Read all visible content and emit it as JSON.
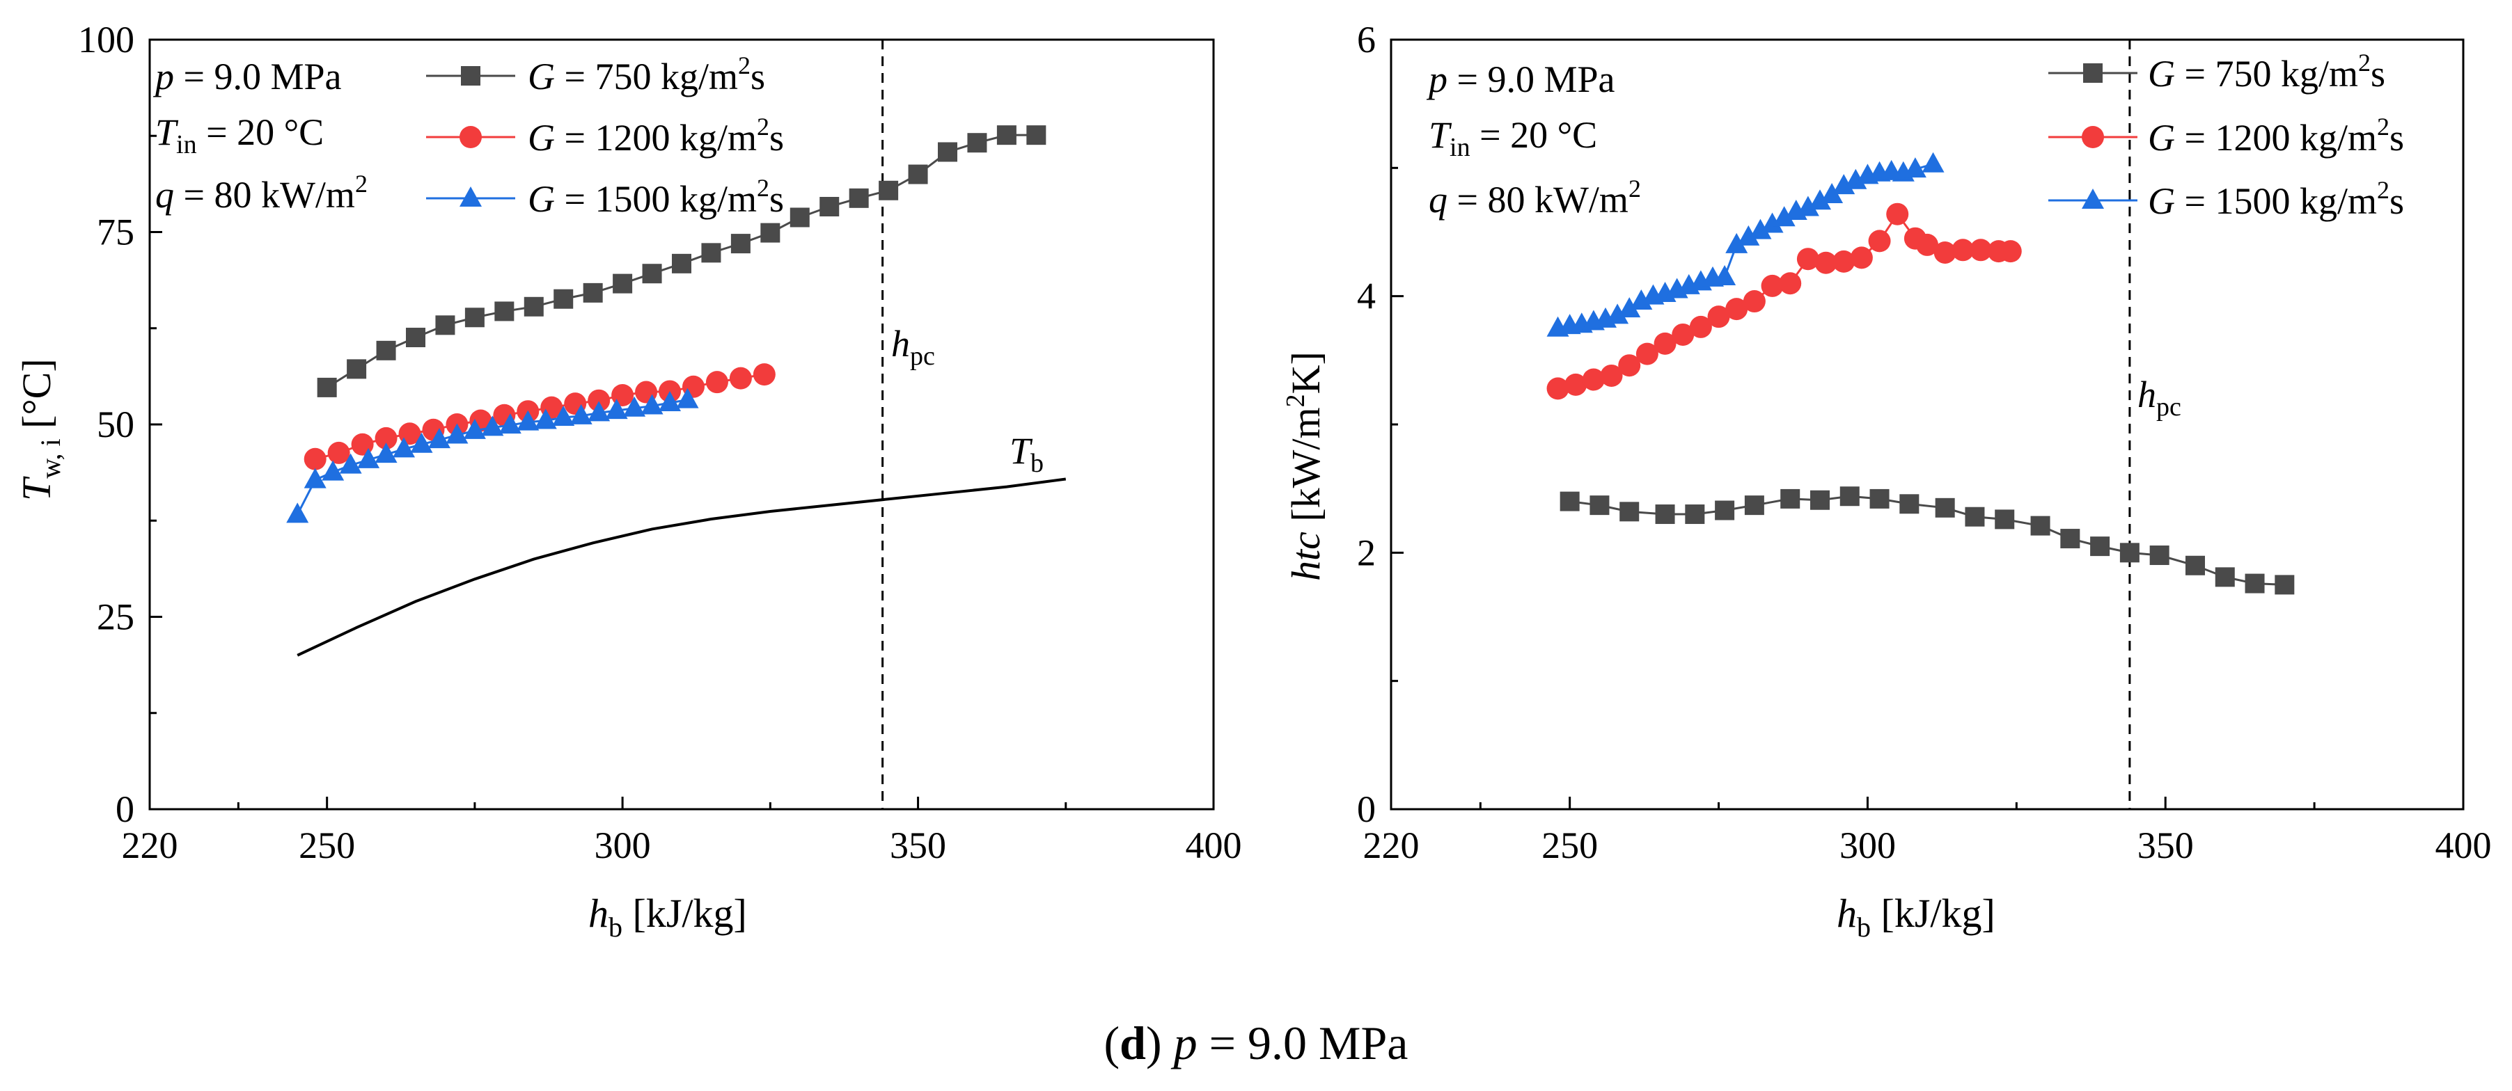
{
  "caption": {
    "letter": "d",
    "p_sym": "p",
    "text": " = 9.0 MPa"
  },
  "conditions": {
    "p": {
      "sym": "p",
      "text": " = 9.0 MPa"
    },
    "tin": {
      "sym": "T",
      "sub": "in",
      "text": " = 20 °C"
    },
    "q": {
      "sym": "q",
      "text": " = 80 kW/m",
      "sup": "2"
    }
  },
  "legend": [
    {
      "sym": "G",
      "text": " = 750 kg/m",
      "sup": "2",
      "tail": "s"
    },
    {
      "sym": "G",
      "text": " = 1200 kg/m",
      "sup": "2",
      "tail": "s"
    },
    {
      "sym": "G",
      "text": " = 1500 kg/m",
      "sup": "2",
      "tail": "s"
    }
  ],
  "annotations": {
    "hpc": {
      "sym": "h",
      "sub": "pc"
    },
    "tb": {
      "sym": "T",
      "sub": "b"
    }
  },
  "colors": {
    "g750": "#4a4a4a",
    "g1200": "#f23c3c",
    "g1500": "#1f6fe0",
    "tb": "#000000"
  },
  "chart_data": [
    {
      "type": "line",
      "title": "",
      "xlabel": {
        "sym": "h",
        "sub": "b",
        "text": " [kJ/kg]"
      },
      "ylabel": {
        "sym": "T",
        "sub": "w, i",
        "text": " [°C]"
      },
      "xlim": [
        220,
        400
      ],
      "ylim": [
        0,
        100
      ],
      "xticks": [
        "220",
        "250",
        "300",
        "350",
        "400"
      ],
      "yticks": [
        "0",
        "25",
        "50",
        "75",
        "100"
      ],
      "hpc_x": 344,
      "series": [
        {
          "name": "G = 750 kg/m2s",
          "marker": "square",
          "x": [
            250,
            255,
            260,
            265,
            270,
            275,
            280,
            285,
            290,
            295,
            300,
            305,
            310,
            315,
            320,
            325,
            330,
            335,
            340,
            345,
            350,
            355,
            360,
            365,
            370
          ],
          "y": [
            54.8,
            57.2,
            59.6,
            61.3,
            62.9,
            63.9,
            64.7,
            65.3,
            66.3,
            67.1,
            68.3,
            69.6,
            70.9,
            72.3,
            73.5,
            74.9,
            76.9,
            78.3,
            79.4,
            80.4,
            82.5,
            85.4,
            86.6,
            87.6,
            87.6
          ]
        },
        {
          "name": "G = 1200 kg/m2s",
          "marker": "circle",
          "x": [
            248,
            252,
            256,
            260,
            264,
            268,
            272,
            276,
            280,
            284,
            288,
            292,
            296,
            300,
            304,
            308,
            312,
            316,
            320,
            324
          ],
          "y": [
            45.5,
            46.3,
            47.4,
            48.2,
            48.8,
            49.3,
            50.0,
            50.5,
            51.2,
            51.7,
            52.2,
            52.7,
            53.1,
            53.8,
            54.2,
            54.3,
            54.9,
            55.5,
            56.0,
            56.5
          ]
        },
        {
          "name": "G = 1500 kg/m2s",
          "marker": "triangle",
          "x": [
            245,
            248,
            251,
            254,
            257,
            260,
            263,
            266,
            269,
            272,
            275,
            278,
            281,
            284,
            287,
            290,
            293,
            296,
            299,
            302,
            305,
            308,
            311
          ],
          "y": [
            38.3,
            42.8,
            43.8,
            44.7,
            45.4,
            46.1,
            46.8,
            47.4,
            48.0,
            48.6,
            49.2,
            49.6,
            49.9,
            50.3,
            50.5,
            50.9,
            51.1,
            51.5,
            51.8,
            52.1,
            52.4,
            52.8,
            53.2
          ]
        }
      ],
      "tb_curve": {
        "x": [
          245,
          255,
          265,
          275,
          285,
          295,
          305,
          315,
          325,
          335,
          345,
          355,
          365,
          375
        ],
        "y": [
          20.0,
          23.6,
          27.0,
          29.9,
          32.5,
          34.6,
          36.4,
          37.7,
          38.7,
          39.5,
          40.3,
          41.1,
          41.9,
          42.9
        ]
      }
    },
    {
      "type": "line",
      "title": "",
      "xlabel": {
        "sym": "h",
        "sub": "b",
        "text": " [kJ/kg]"
      },
      "ylabel": {
        "sym": "htc",
        "text": " [kW/m",
        "sup": "2",
        "tail": "K]"
      },
      "xlim": [
        220,
        400
      ],
      "ylim": [
        0,
        6
      ],
      "xticks": [
        "220",
        "250",
        "300",
        "350",
        "400"
      ],
      "yticks": [
        "0",
        "2",
        "4",
        "6"
      ],
      "hpc_x": 344,
      "series": [
        {
          "name": "G = 750 kg/m2s",
          "marker": "square",
          "x": [
            250,
            255,
            260,
            266,
            271,
            276,
            281,
            287,
            292,
            297,
            302,
            307,
            313,
            318,
            323,
            329,
            334,
            339,
            344,
            349,
            355,
            360,
            365,
            370
          ],
          "y": [
            2.4,
            2.37,
            2.32,
            2.3,
            2.3,
            2.33,
            2.37,
            2.42,
            2.41,
            2.44,
            2.42,
            2.38,
            2.35,
            2.28,
            2.26,
            2.21,
            2.11,
            2.05,
            2.0,
            1.98,
            1.9,
            1.81,
            1.76,
            1.75
          ]
        },
        {
          "name": "G = 1200 kg/m2s",
          "marker": "circle",
          "x": [
            248,
            251,
            254,
            257,
            260,
            263,
            266,
            269,
            272,
            275,
            278,
            281,
            284,
            287,
            290,
            293,
            296,
            299,
            302,
            305,
            308,
            310,
            313,
            316,
            319,
            322,
            324
          ],
          "y": [
            3.28,
            3.31,
            3.35,
            3.38,
            3.46,
            3.55,
            3.63,
            3.7,
            3.76,
            3.84,
            3.9,
            3.96,
            4.08,
            4.1,
            4.29,
            4.26,
            4.27,
            4.3,
            4.43,
            4.64,
            4.45,
            4.4,
            4.34,
            4.36,
            4.36,
            4.35,
            4.35
          ]
        },
        {
          "name": "G = 1500 kg/m2s",
          "marker": "triangle",
          "x": [
            248,
            250,
            252,
            254,
            256,
            258,
            260,
            262,
            264,
            266,
            268,
            270,
            272,
            274,
            276,
            278,
            280,
            282,
            284,
            286,
            288,
            290,
            292,
            294,
            296,
            298,
            300,
            302,
            304,
            306,
            308,
            311
          ],
          "y": [
            3.75,
            3.77,
            3.78,
            3.8,
            3.82,
            3.85,
            3.9,
            3.96,
            4.0,
            4.02,
            4.05,
            4.08,
            4.11,
            4.14,
            4.15,
            4.4,
            4.46,
            4.51,
            4.56,
            4.61,
            4.66,
            4.69,
            4.74,
            4.79,
            4.86,
            4.9,
            4.94,
            4.96,
            4.97,
            4.96,
            4.99,
            5.03
          ]
        }
      ]
    }
  ]
}
